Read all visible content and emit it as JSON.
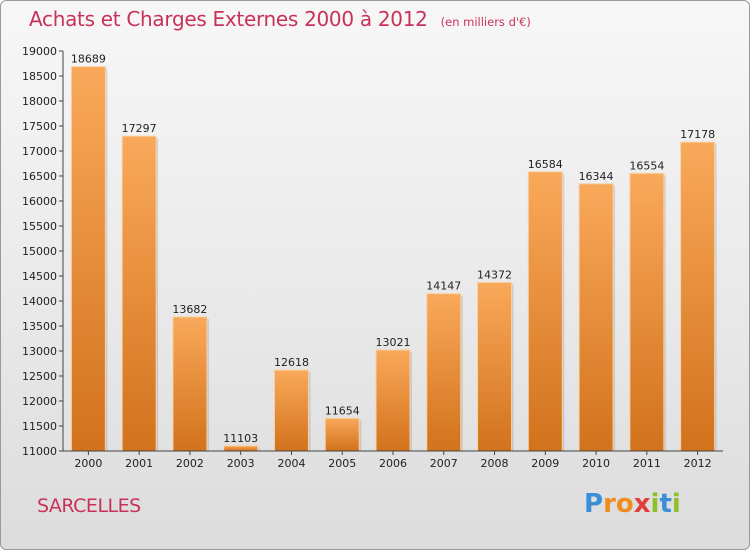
{
  "header": {
    "title": "Achats et Charges Externes 2000 à 2012",
    "subtitle": "(en milliers d'€)"
  },
  "footer": {
    "city": "SARCELLES",
    "logo_letters": [
      "P",
      "r",
      "o",
      "x",
      "i",
      "t",
      "i"
    ]
  },
  "colors": {
    "bar_top": "#f9a95a",
    "bar_bottom": "#d2721c",
    "title": "#c8325a",
    "logo": [
      "#3a8fd6",
      "#f08c1e",
      "#f08c1e",
      "#e23c3c",
      "#8fbf2a",
      "#3a8fd6",
      "#8fbf2a"
    ]
  },
  "chart_data": {
    "type": "bar",
    "categories": [
      "2000",
      "2001",
      "2002",
      "2003",
      "2004",
      "2005",
      "2006",
      "2007",
      "2008",
      "2009",
      "2010",
      "2011",
      "2012"
    ],
    "values": [
      18689,
      17297,
      13682,
      11103,
      12618,
      11654,
      13021,
      14147,
      14372,
      16584,
      16344,
      16554,
      17178
    ],
    "ylim": [
      11000,
      19000
    ],
    "yticks": [
      11000,
      11500,
      12000,
      12500,
      13000,
      13500,
      14000,
      14500,
      15000,
      15500,
      16000,
      16500,
      17000,
      17500,
      18000,
      18500,
      19000
    ],
    "grid": false
  }
}
